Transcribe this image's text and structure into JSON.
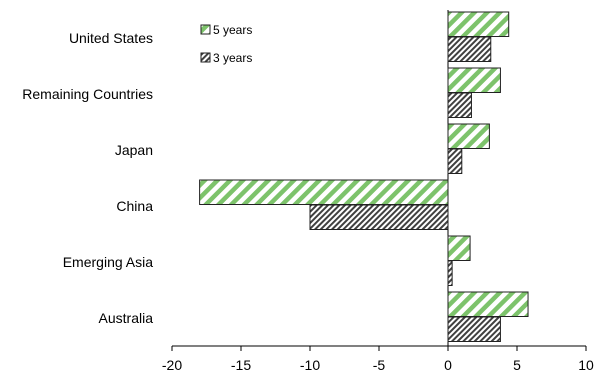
{
  "chart_data": {
    "type": "bar",
    "orientation": "horizontal",
    "categories": [
      "United States",
      "Remaining Countries",
      "Japan",
      "China",
      "Emerging Asia",
      "Australia"
    ],
    "series": [
      {
        "name": "5 years",
        "values": [
          4.4,
          3.8,
          3.0,
          -18.0,
          1.6,
          5.8
        ],
        "color": "#7dc36b",
        "pattern": "green-diagonal-stripes"
      },
      {
        "name": "3 years",
        "values": [
          3.1,
          1.7,
          1.0,
          -10.0,
          0.3,
          3.8
        ],
        "color": "#404040",
        "pattern": "dark-diagonal-hatch"
      }
    ],
    "xlim": [
      -20,
      10
    ],
    "xticks": [
      -20,
      -15,
      -10,
      -5,
      0,
      5,
      10
    ],
    "xtick_labels": [
      "-20",
      "-15",
      "-10",
      "-5",
      "0",
      "5",
      "10"
    ],
    "grid": false,
    "legend_position": "top-left"
  }
}
